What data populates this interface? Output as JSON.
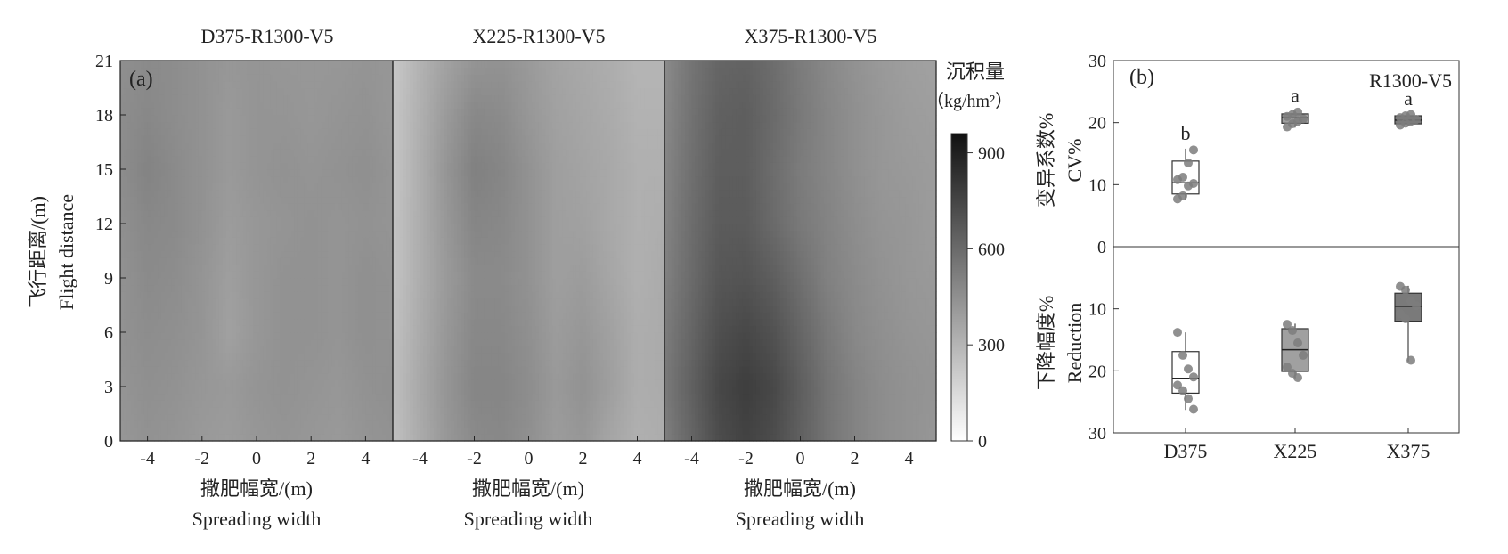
{
  "panel_a": {
    "label": "(a)",
    "titles": [
      "D375-R1300-V5",
      "X225-R1300-V5",
      "X375-R1300-V5"
    ],
    "ylabel_cn": "飞行距离/(m)",
    "ylabel_en": "Flight distance",
    "xlabel_cn": "撒肥幅宽/(m)",
    "xlabel_en": "Spreading width",
    "yticks": [
      "0",
      "3",
      "6",
      "9",
      "12",
      "15",
      "18",
      "21"
    ],
    "xticks": [
      "-4",
      "-2",
      "0",
      "2",
      "4"
    ],
    "colorbar": {
      "title_cn": "沉积量",
      "title_unit": "（kg/hm²）",
      "ticks": [
        "0",
        "300",
        "600",
        "900"
      ],
      "range": [
        0,
        960
      ],
      "colors": {
        "low": "#ffffff",
        "high": "#111111"
      }
    }
  },
  "panel_b": {
    "label": "(b)",
    "subtitle": "R1300-V5",
    "top_ylabel_cn": "变异系数%",
    "top_ylabel_en": "CV%",
    "bottom_ylabel_cn": "下降幅度%",
    "bottom_ylabel_en": "Reduction",
    "top_yticks": [
      "30",
      "20",
      "10",
      "0"
    ],
    "bottom_yticks": [
      "10",
      "20",
      "30"
    ]
  },
  "chart_data": [
    {
      "type": "heatmap",
      "title": "D375-R1300-V5",
      "xlabel": "撒肥幅宽/(m) Spreading width",
      "ylabel": "飞行距离/(m) Flight distance",
      "xlim": [
        -5,
        5
      ],
      "ylim": [
        0,
        21
      ],
      "x": [
        -5,
        -4,
        -3,
        -2,
        -1,
        0,
        1,
        2,
        3,
        4,
        5
      ],
      "y": [
        0,
        3,
        6,
        9,
        12,
        15,
        18,
        21
      ],
      "z": [
        [
          420,
          440,
          430,
          410,
          400,
          420,
          430,
          420,
          410,
          430,
          440
        ],
        [
          430,
          450,
          440,
          420,
          410,
          430,
          440,
          430,
          420,
          440,
          450
        ],
        [
          440,
          460,
          450,
          430,
          380,
          420,
          440,
          440,
          430,
          450,
          440
        ],
        [
          440,
          470,
          460,
          430,
          390,
          420,
          440,
          440,
          430,
          450,
          440
        ],
        [
          450,
          480,
          470,
          440,
          400,
          420,
          430,
          440,
          430,
          440,
          430
        ],
        [
          460,
          500,
          470,
          440,
          410,
          430,
          440,
          430,
          440,
          450,
          430
        ],
        [
          460,
          480,
          460,
          440,
          410,
          430,
          430,
          420,
          430,
          440,
          420
        ],
        [
          450,
          470,
          460,
          440,
          420,
          430,
          420,
          420,
          420,
          430,
          420
        ]
      ]
    },
    {
      "type": "heatmap",
      "title": "X225-R1300-V5",
      "xlabel": "撒肥幅宽/(m) Spreading width",
      "xlim": [
        -5,
        5
      ],
      "ylim": [
        0,
        21
      ],
      "x": [
        -5,
        -4,
        -3,
        -2,
        -1,
        0,
        1,
        2,
        3,
        4,
        5
      ],
      "y": [
        0,
        3,
        6,
        9,
        12,
        15,
        18,
        21
      ],
      "z": [
        [
          250,
          340,
          420,
          470,
          480,
          450,
          400,
          420,
          360,
          320,
          330
        ],
        [
          260,
          350,
          430,
          490,
          490,
          460,
          410,
          440,
          390,
          330,
          340
        ],
        [
          250,
          340,
          420,
          480,
          480,
          450,
          400,
          420,
          380,
          330,
          340
        ],
        [
          240,
          330,
          410,
          470,
          470,
          440,
          390,
          400,
          360,
          320,
          340
        ],
        [
          240,
          330,
          420,
          490,
          480,
          440,
          390,
          380,
          350,
          320,
          330
        ],
        [
          230,
          330,
          430,
          510,
          490,
          440,
          390,
          370,
          350,
          320,
          320
        ],
        [
          230,
          320,
          410,
          480,
          470,
          420,
          380,
          360,
          340,
          310,
          310
        ],
        [
          220,
          310,
          380,
          430,
          440,
          410,
          370,
          350,
          330,
          300,
          300
        ]
      ]
    },
    {
      "type": "heatmap",
      "title": "X375-R1300-V5",
      "xlabel": "撒肥幅宽/(m) Spreading width",
      "xlim": [
        -5,
        5
      ],
      "ylim": [
        0,
        21
      ],
      "x": [
        -5,
        -4,
        -3,
        -2,
        -1,
        0,
        1,
        2,
        3,
        4,
        5
      ],
      "y": [
        0,
        3,
        6,
        9,
        12,
        15,
        18,
        21
      ],
      "z": [
        [
          520,
          620,
          720,
          760,
          720,
          640,
          560,
          500,
          460,
          440,
          420
        ],
        [
          540,
          640,
          740,
          780,
          740,
          650,
          560,
          500,
          460,
          440,
          430
        ],
        [
          530,
          620,
          710,
          740,
          700,
          620,
          540,
          480,
          450,
          430,
          420
        ],
        [
          510,
          600,
          680,
          690,
          650,
          580,
          510,
          470,
          440,
          420,
          410
        ],
        [
          500,
          590,
          660,
          660,
          600,
          540,
          500,
          460,
          430,
          420,
          400
        ],
        [
          490,
          580,
          650,
          650,
          590,
          530,
          490,
          450,
          420,
          410,
          400
        ],
        [
          480,
          570,
          640,
          650,
          600,
          540,
          490,
          450,
          420,
          400,
          390
        ],
        [
          470,
          560,
          620,
          630,
          590,
          530,
          480,
          440,
          410,
          390,
          380
        ]
      ]
    },
    {
      "type": "box",
      "panel": "top",
      "title": "R1300-V5",
      "ylabel": "变异系数% CV%",
      "ylim": [
        0,
        30
      ],
      "categories": [
        "D375",
        "X225",
        "X375"
      ],
      "letters": [
        "b",
        "a",
        "a"
      ],
      "boxes": [
        {
          "min": 7.5,
          "q1": 8.5,
          "median": 10.3,
          "q3": 13.8,
          "max": 15.8,
          "points": [
            7.7,
            8.2,
            9.8,
            10.2,
            10.8,
            11.2,
            13.5,
            15.6
          ]
        },
        {
          "min": 19.2,
          "q1": 19.9,
          "median": 20.8,
          "q3": 21.4,
          "max": 21.9,
          "points": [
            19.3,
            19.8,
            20.2,
            20.6,
            21.0,
            21.3,
            21.7
          ]
        },
        {
          "min": 19.5,
          "q1": 19.8,
          "median": 20.4,
          "q3": 21.1,
          "max": 21.4,
          "points": [
            19.6,
            19.9,
            20.2,
            20.5,
            20.8,
            21.1,
            21.3
          ]
        }
      ]
    },
    {
      "type": "box",
      "panel": "bottom",
      "ylabel": "下降幅度% Reduction",
      "ylim": [
        30,
        0
      ],
      "categories": [
        "D375",
        "X225",
        "X375"
      ],
      "boxes": [
        {
          "min": 13.8,
          "q1": 16.9,
          "median": 21.2,
          "q3": 23.6,
          "max": 26.3,
          "points": [
            13.8,
            17.5,
            19.7,
            21.0,
            22.3,
            23.2,
            24.5,
            26.2
          ]
        },
        {
          "min": 12.4,
          "q1": 13.2,
          "median": 16.6,
          "q3": 20.1,
          "max": 21.2,
          "points": [
            12.5,
            13.5,
            15.5,
            17.5,
            19.4,
            20.4,
            21.1
          ]
        },
        {
          "min": 6.3,
          "q1": 7.5,
          "median": 9.6,
          "q3": 12.0,
          "max": 18.5,
          "points": [
            6.4,
            7.0,
            8.8,
            9.5,
            10.8,
            11.6,
            18.3
          ]
        }
      ]
    }
  ]
}
